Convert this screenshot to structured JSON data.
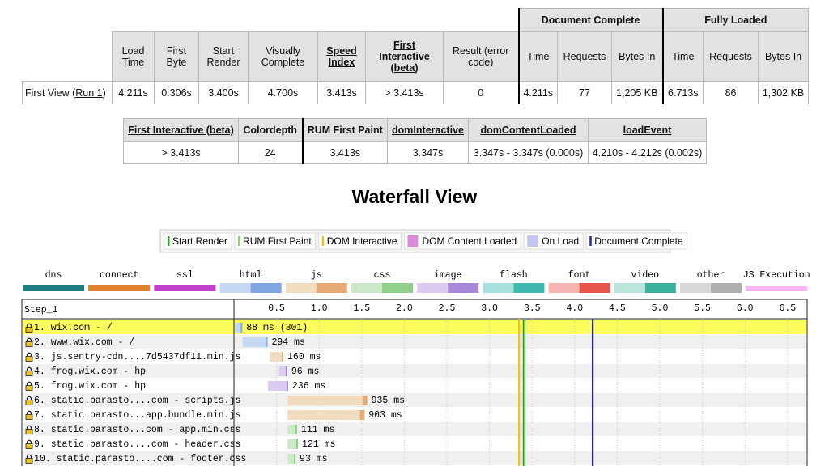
{
  "summary_table": {
    "group_headers": [
      "Document Complete",
      "Fully Loaded"
    ],
    "headers": [
      {
        "text": "Load Time",
        "link": false
      },
      {
        "text": "First Byte",
        "link": false
      },
      {
        "text": "Start Render",
        "link": false
      },
      {
        "text": "Visually Complete",
        "link": false
      },
      {
        "text": "Speed Index",
        "link": true
      },
      {
        "text": "First Interactive (beta)",
        "link": true
      },
      {
        "text": "Result (error code)",
        "link": false
      },
      {
        "text": "Time",
        "link": false
      },
      {
        "text": "Requests",
        "link": false
      },
      {
        "text": "Bytes In",
        "link": false
      },
      {
        "text": "Time",
        "link": false
      },
      {
        "text": "Requests",
        "link": false
      },
      {
        "text": "Bytes In",
        "link": false
      }
    ],
    "row": {
      "label_prefix": "First View (",
      "run_link": "Run 1",
      "label_suffix": ")",
      "cells": [
        "4.211s",
        "0.306s",
        "3.400s",
        "4.700s",
        "3.413s",
        "> 3.413s",
        "0",
        "4.211s",
        "77",
        "1,205 KB",
        "6.713s",
        "86",
        "1,302 KB"
      ]
    }
  },
  "detail_table": {
    "headers": [
      {
        "text": "First Interactive (beta)",
        "link": true
      },
      {
        "text": "Colordepth",
        "link": false
      },
      {
        "text": "RUM First Paint",
        "link": false
      },
      {
        "text": "domInteractive",
        "link": true
      },
      {
        "text": "domContentLoaded",
        "link": true
      },
      {
        "text": "loadEvent",
        "link": true
      }
    ],
    "cells": [
      "> 3.413s",
      "24",
      "3.413s",
      "3.347s",
      "3.347s - 3.347s (0.000s)",
      "4.210s - 4.212s (0.002s)"
    ]
  },
  "waterfall": {
    "title": "Waterfall View",
    "events": [
      {
        "label": "Start Render",
        "color": "#2ca02c",
        "style": "line",
        "at": 3.4
      },
      {
        "label": "RUM First Paint",
        "color": "#8fd16f",
        "style": "line",
        "at": 3.413
      },
      {
        "label": "DOM Interactive",
        "color": "#f0c419",
        "style": "line",
        "at": 3.347
      },
      {
        "label": "DOM Content Loaded",
        "color": "#d98bd9",
        "style": "box",
        "at": 3.347
      },
      {
        "label": "On Load",
        "color": "#c4c4f4",
        "style": "box",
        "at": 4.21
      },
      {
        "label": "Document Complete",
        "color": "#2a2aa6",
        "style": "line",
        "at": 4.211
      }
    ],
    "resource_types": [
      {
        "label": "dns",
        "colors": [
          "#1f7c83"
        ]
      },
      {
        "label": "connect",
        "colors": [
          "#e0812e"
        ]
      },
      {
        "label": "ssl",
        "colors": [
          "#c141cd"
        ]
      },
      {
        "label": "html",
        "colors": [
          "#c6d9f3",
          "#82a6e0"
        ]
      },
      {
        "label": "js",
        "colors": [
          "#f2dcc0",
          "#e6aa78"
        ]
      },
      {
        "label": "css",
        "colors": [
          "#cbebc6",
          "#8fd18a"
        ]
      },
      {
        "label": "image",
        "colors": [
          "#dccbf0",
          "#a987d8"
        ]
      },
      {
        "label": "flash",
        "colors": [
          "#a8e0dd",
          "#3fb8b0"
        ]
      },
      {
        "label": "font",
        "colors": [
          "#f4b5b2",
          "#e6554e"
        ]
      },
      {
        "label": "video",
        "colors": [
          "#bae5dd",
          "#3bb39c"
        ]
      },
      {
        "label": "other",
        "colors": [
          "#d8d8d8",
          "#b0b0b0"
        ]
      },
      {
        "label": "JS Execution",
        "colors": [
          "#f8b4f3"
        ]
      }
    ],
    "step": "Step_1",
    "xlim": [
      0,
      6.73
    ],
    "xticks": [
      0.5,
      {
        "value": 1,
        "label": "1.0"
      },
      1.5,
      {
        "value": 2,
        "label": "2.0"
      },
      2.5,
      {
        "value": 3,
        "label": "3.0"
      },
      3.5,
      {
        "value": 4,
        "label": "4.0"
      },
      4.5,
      {
        "value": 5,
        "label": "5.0"
      },
      5.5,
      {
        "value": 6,
        "label": "6.0"
      },
      6.5
    ],
    "requests": [
      {
        "url": "1. wix.com - /",
        "type": 3,
        "start": 0.01,
        "ms": 88,
        "label": "88 ms (301)"
      },
      {
        "url": "2. www.wix.com - /",
        "type": 3,
        "start": 0.1,
        "ms": 294,
        "label": "294 ms"
      },
      {
        "url": "3. js.sentry-cdn....7d5437df11.min.js",
        "type": 4,
        "start": 0.42,
        "ms": 160,
        "label": "160 ms"
      },
      {
        "url": "4. frog.wix.com - hp",
        "type": 6,
        "start": 0.53,
        "ms": 96,
        "label": "96 ms"
      },
      {
        "url": "5. frog.wix.com - hp",
        "type": 6,
        "start": 0.4,
        "ms": 236,
        "label": "236 ms"
      },
      {
        "url": "6. static.parasto....com - scripts.js",
        "type": 4,
        "start": 0.63,
        "ms": 935,
        "label": "935 ms"
      },
      {
        "url": "7. static.parasto...app.bundle.min.js",
        "type": 4,
        "start": 0.63,
        "ms": 903,
        "label": "903 ms"
      },
      {
        "url": "8. static.parasto...com - app.min.css",
        "type": 5,
        "start": 0.63,
        "ms": 111,
        "label": "111 ms"
      },
      {
        "url": "9. static.parasto....com - header.css",
        "type": 5,
        "start": 0.63,
        "ms": 121,
        "label": "121 ms"
      },
      {
        "url": "10. static.parasto....com - footer.css",
        "type": 5,
        "start": 0.63,
        "ms": 93,
        "label": "93 ms"
      }
    ]
  }
}
